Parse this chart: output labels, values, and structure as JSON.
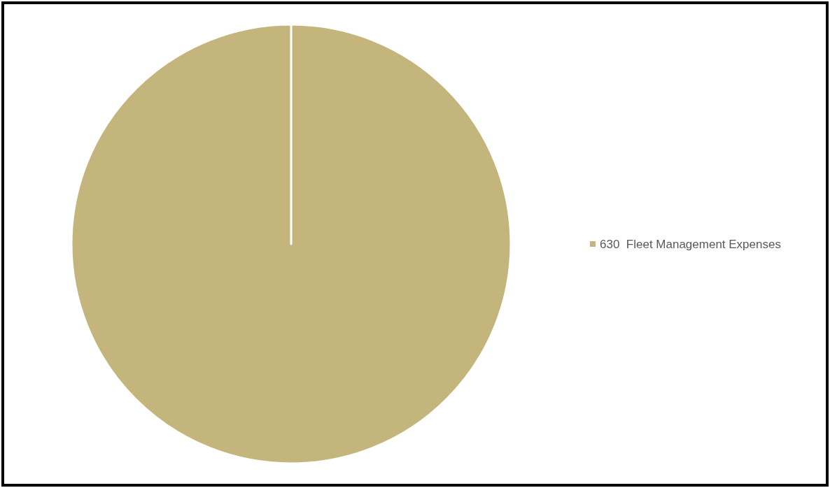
{
  "chart_data": {
    "type": "pie",
    "categories": [
      "630  Fleet Management Expenses"
    ],
    "values": [
      100
    ],
    "colors": [
      "#c4b57c"
    ],
    "legend": "right"
  }
}
